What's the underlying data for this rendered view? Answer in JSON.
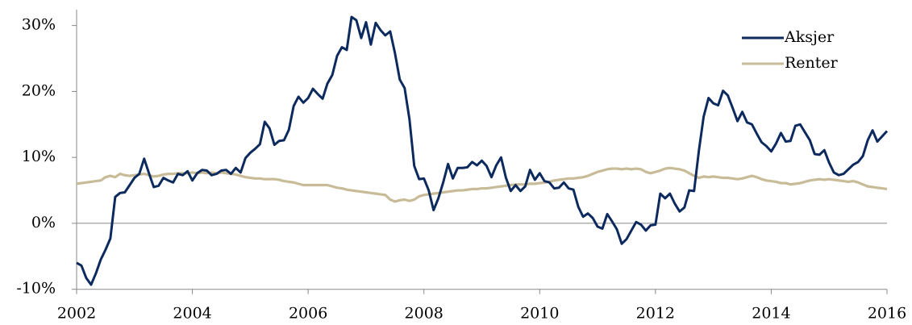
{
  "chart_data": {
    "type": "line",
    "x": [
      2002,
      2002.083,
      2002.167,
      2002.25,
      2002.333,
      2002.417,
      2002.5,
      2002.583,
      2002.667,
      2002.75,
      2002.833,
      2002.917,
      2003,
      2003.083,
      2003.167,
      2003.25,
      2003.333,
      2003.417,
      2003.5,
      2003.583,
      2003.667,
      2003.75,
      2003.833,
      2003.917,
      2004,
      2004.083,
      2004.167,
      2004.25,
      2004.333,
      2004.417,
      2004.5,
      2004.583,
      2004.667,
      2004.75,
      2004.833,
      2004.917,
      2005,
      2005.083,
      2005.167,
      2005.25,
      2005.333,
      2005.417,
      2005.5,
      2005.583,
      2005.667,
      2005.75,
      2005.833,
      2005.917,
      2006,
      2006.083,
      2006.167,
      2006.25,
      2006.333,
      2006.417,
      2006.5,
      2006.583,
      2006.667,
      2006.75,
      2006.833,
      2006.917,
      2007,
      2007.083,
      2007.167,
      2007.25,
      2007.333,
      2007.417,
      2007.5,
      2007.583,
      2007.667,
      2007.75,
      2007.833,
      2007.917,
      2008,
      2008.083,
      2008.167,
      2008.25,
      2008.333,
      2008.417,
      2008.5,
      2008.583,
      2008.667,
      2008.75,
      2008.833,
      2008.917,
      2009,
      2009.083,
      2009.167,
      2009.25,
      2009.333,
      2009.417,
      2009.5,
      2009.583,
      2009.667,
      2009.75,
      2009.833,
      2009.917,
      2010,
      2010.083,
      2010.167,
      2010.25,
      2010.333,
      2010.417,
      2010.5,
      2010.583,
      2010.667,
      2010.75,
      2010.833,
      2010.917,
      2011,
      2011.083,
      2011.167,
      2011.25,
      2011.333,
      2011.417,
      2011.5,
      2011.583,
      2011.667,
      2011.75,
      2011.833,
      2011.917,
      2012,
      2012.083,
      2012.167,
      2012.25,
      2012.333,
      2012.417,
      2012.5,
      2012.583,
      2012.667,
      2012.75,
      2012.833,
      2012.917,
      2013,
      2013.083,
      2013.167,
      2013.25,
      2013.333,
      2013.417,
      2013.5,
      2013.583,
      2013.667,
      2013.75,
      2013.833,
      2013.917,
      2014,
      2014.083,
      2014.167,
      2014.25,
      2014.333,
      2014.417,
      2014.5,
      2014.583,
      2014.667,
      2014.75,
      2014.833,
      2014.917,
      2015,
      2015.083,
      2015.167,
      2015.25,
      2015.333,
      2015.417,
      2015.5,
      2015.583,
      2015.667,
      2015.75,
      2015.833,
      2015.917,
      2016
    ],
    "series": [
      {
        "name": "Aksjer",
        "color": "#0d2a5e",
        "values": [
          -6,
          -6.4,
          -8.3,
          -9.3,
          -7.6,
          -5.5,
          -4,
          -2.3,
          4,
          4.6,
          4.7,
          5.8,
          6.9,
          7.5,
          9.8,
          7.6,
          5.5,
          5.7,
          6.9,
          6.5,
          6.2,
          7.5,
          7.3,
          7.9,
          6.5,
          7.6,
          8.1,
          8,
          7.3,
          7.5,
          8,
          8.1,
          7.5,
          8.4,
          7.7,
          9.9,
          10.7,
          11.3,
          12,
          15.4,
          14.4,
          11.9,
          12.5,
          12.6,
          14.2,
          17.8,
          19.2,
          18.3,
          19,
          20.4,
          19.6,
          18.9,
          21.2,
          22.5,
          25.4,
          26.7,
          26.3,
          31.3,
          30.8,
          28.1,
          30.5,
          27.1,
          30.4,
          29.3,
          28.5,
          29.1,
          25.8,
          21.8,
          20.5,
          15.8,
          8.7,
          6.7,
          6.8,
          5,
          2,
          3.8,
          6.2,
          9,
          6.8,
          8.4,
          8.4,
          8.5,
          9.3,
          8.8,
          9.5,
          8.7,
          7,
          8.8,
          10,
          6.9,
          4.9,
          5.8,
          4.9,
          5.6,
          8.1,
          6.6,
          7.6,
          6.4,
          6.2,
          5.3,
          5.4,
          6.2,
          5.3,
          5.1,
          2.5,
          1,
          1.5,
          0.8,
          -0.5,
          -0.8,
          1.4,
          0.3,
          -0.9,
          -3.1,
          -2.4,
          -1.1,
          0.2,
          -0.2,
          -1.1,
          -0.3,
          -0.2,
          4.5,
          3.8,
          4.5,
          3,
          1.8,
          2.4,
          5,
          4.9,
          11,
          16.2,
          19,
          18.2,
          17.9,
          20.1,
          19.4,
          17.5,
          15.5,
          16.9,
          15.3,
          15,
          13.6,
          12.3,
          11.7,
          10.9,
          12.1,
          13.7,
          12.4,
          12.5,
          14.8,
          15,
          13.8,
          12.6,
          10.5,
          10.4,
          11.1,
          9.2,
          7.7,
          7.3,
          7.5,
          8.2,
          8.9,
          9.3,
          10.2,
          12.6,
          14.1,
          12.4,
          13.2,
          14
        ]
      },
      {
        "name": "Renter",
        "color": "#c8bc98",
        "values": [
          6,
          6.1,
          6.2,
          6.3,
          6.4,
          6.5,
          7,
          7.2,
          7,
          7.5,
          7.3,
          7.2,
          7.3,
          7.4,
          7.5,
          7.3,
          7.1,
          7.2,
          7.4,
          7.5,
          7.5,
          7.6,
          7.6,
          7.6,
          7.7,
          7.6,
          7.7,
          7.6,
          7.7,
          7.6,
          7.7,
          7.6,
          7.5,
          7.4,
          7.2,
          7,
          6.9,
          6.8,
          6.8,
          6.7,
          6.7,
          6.7,
          6.6,
          6.4,
          6.3,
          6.2,
          6,
          5.8,
          5.8,
          5.8,
          5.8,
          5.8,
          5.8,
          5.6,
          5.4,
          5.3,
          5.1,
          5,
          4.9,
          4.8,
          4.7,
          4.6,
          4.5,
          4.4,
          4.3,
          3.6,
          3.3,
          3.5,
          3.6,
          3.4,
          3.6,
          4.1,
          4.3,
          4.4,
          4.5,
          4.6,
          4.7,
          4.8,
          4.9,
          5,
          5,
          5.1,
          5.2,
          5.2,
          5.3,
          5.3,
          5.4,
          5.5,
          5.6,
          5.7,
          5.8,
          5.9,
          5.9,
          5.9,
          6,
          6,
          6.1,
          6.2,
          6.3,
          6.5,
          6.6,
          6.7,
          6.8,
          6.8,
          6.9,
          7,
          7.2,
          7.5,
          7.8,
          8,
          8.2,
          8.3,
          8.3,
          8.2,
          8.3,
          8.2,
          8.3,
          8.2,
          7.8,
          7.6,
          7.8,
          8,
          8.3,
          8.4,
          8.3,
          8.2,
          8,
          7.6,
          7.2,
          6.9,
          7.1,
          7,
          7.1,
          7,
          6.9,
          6.9,
          6.8,
          6.7,
          6.8,
          7,
          7.2,
          7,
          6.7,
          6.5,
          6.4,
          6.3,
          6.1,
          6.1,
          5.9,
          6,
          6.1,
          6.3,
          6.5,
          6.6,
          6.7,
          6.6,
          6.7,
          6.6,
          6.5,
          6.4,
          6.3,
          6.4,
          6.2,
          5.9,
          5.6,
          5.5,
          5.4,
          5.3,
          5.2
        ]
      }
    ],
    "xlim": [
      2002,
      2016
    ],
    "xticks": [
      2002,
      2004,
      2006,
      2008,
      2010,
      2012,
      2014,
      2016
    ],
    "ylim": [
      -10,
      32.4
    ],
    "yticks": [
      {
        "value": -10,
        "label": "-10%"
      },
      {
        "value": 0,
        "label": "0%"
      },
      {
        "value": 10,
        "label": "10%"
      },
      {
        "value": 20,
        "label": "20%"
      },
      {
        "value": 30,
        "label": "30%"
      }
    ],
    "legend": "upper right"
  }
}
